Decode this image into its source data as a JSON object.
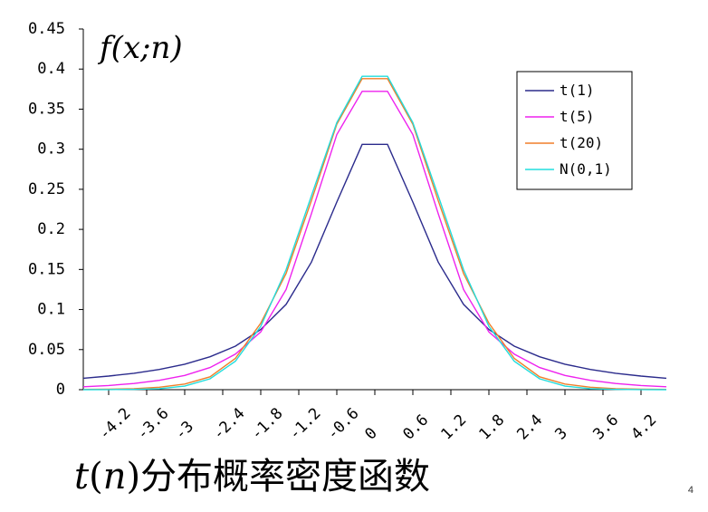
{
  "chart_data": {
    "type": "line",
    "ylabel": "f(x;n)",
    "ylim": [
      0,
      0.45
    ],
    "yticks": [
      "0",
      "0.05",
      "0.1",
      "0.15",
      "0.2",
      "0.25",
      "0.3",
      "0.35",
      "0.4",
      "0.45"
    ],
    "xlim": [
      -4.6,
      4.6
    ],
    "xticks": [
      "-4.2",
      "-3.6",
      "-3",
      "-2.4",
      "-1.8",
      "-1.2",
      "-0.6",
      "0",
      "0.6",
      "1.2",
      "1.8",
      "2.4",
      "3",
      "3.6",
      "4.2"
    ],
    "legend_position": "top-right",
    "grid": false,
    "series": [
      {
        "name": "t(1)",
        "color": "#2b2b8c",
        "x": [
          -4.6,
          -4.2,
          -3.8,
          -3.4,
          -3.0,
          -2.6,
          -2.2,
          -1.8,
          -1.4,
          -1.0,
          -0.6,
          -0.2,
          0.2,
          0.6,
          1.0,
          1.4,
          1.8,
          2.2,
          2.6,
          3.0,
          3.4,
          3.8,
          4.2,
          4.6
        ],
        "y": [
          0.0143,
          0.017,
          0.0205,
          0.0252,
          0.0318,
          0.041,
          0.0543,
          0.0751,
          0.1064,
          0.1592,
          0.2341,
          0.3061,
          0.3061,
          0.2341,
          0.1592,
          0.1064,
          0.0751,
          0.0543,
          0.041,
          0.0318,
          0.0252,
          0.0205,
          0.017,
          0.0143
        ]
      },
      {
        "name": "t(5)",
        "color": "#ee22ee",
        "x": [
          -4.6,
          -4.2,
          -3.8,
          -3.4,
          -3.0,
          -2.6,
          -2.2,
          -1.8,
          -1.4,
          -1.0,
          -0.6,
          -0.2,
          0.2,
          0.6,
          1.0,
          1.4,
          1.8,
          2.2,
          2.6,
          3.0,
          3.4,
          3.8,
          4.2,
          4.6
        ],
        "y": [
          0.0036,
          0.0052,
          0.0077,
          0.0117,
          0.0177,
          0.0276,
          0.0443,
          0.072,
          0.1249,
          0.2197,
          0.3183,
          0.3722,
          0.3722,
          0.3183,
          0.2197,
          0.1249,
          0.072,
          0.0443,
          0.0276,
          0.0177,
          0.0117,
          0.0077,
          0.0052,
          0.0036
        ]
      },
      {
        "name": "t(20)",
        "color": "#f07f2a",
        "x": [
          -4.6,
          -4.2,
          -3.8,
          -3.4,
          -3.0,
          -2.6,
          -2.2,
          -1.8,
          -1.4,
          -1.0,
          -0.6,
          -0.2,
          0.2,
          0.6,
          1.0,
          1.4,
          1.8,
          2.2,
          2.6,
          3.0,
          3.4,
          3.8,
          4.2,
          4.6
        ],
        "y": [
          0.0003,
          0.0006,
          0.0013,
          0.003,
          0.007,
          0.016,
          0.039,
          0.083,
          0.145,
          0.236,
          0.331,
          0.388,
          0.388,
          0.331,
          0.236,
          0.145,
          0.083,
          0.039,
          0.016,
          0.007,
          0.003,
          0.0013,
          0.0006,
          0.0003
        ]
      },
      {
        "name": "N(0,1)",
        "color": "#22dddd",
        "x": [
          -4.6,
          -4.2,
          -3.8,
          -3.4,
          -3.0,
          -2.6,
          -2.2,
          -1.8,
          -1.4,
          -1.0,
          -0.6,
          -0.2,
          0.2,
          0.6,
          1.0,
          1.4,
          1.8,
          2.2,
          2.6,
          3.0,
          3.4,
          3.8,
          4.2,
          4.6
        ],
        "y": [
          0.0,
          0.0001,
          0.0003,
          0.0012,
          0.0044,
          0.0136,
          0.0355,
          0.079,
          0.1497,
          0.242,
          0.3332,
          0.391,
          0.391,
          0.3332,
          0.242,
          0.1497,
          0.079,
          0.0355,
          0.0136,
          0.0044,
          0.0012,
          0.0003,
          0.0001,
          0.0
        ]
      }
    ]
  },
  "title": {
    "t": "t",
    "open": "(",
    "n": "n",
    "close": ")",
    "rest": "分布概率密度函数"
  },
  "page_number": "4"
}
